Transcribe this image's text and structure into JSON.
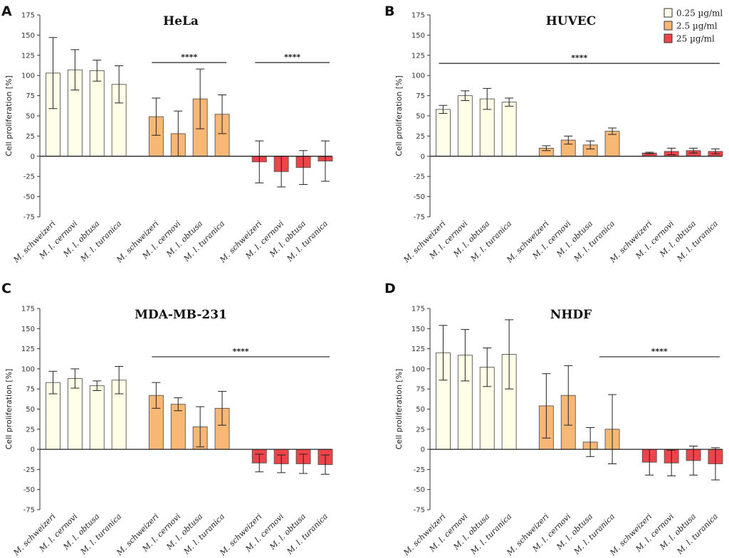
{
  "colors": {
    "low": "#FFFEE6",
    "mid": "#F9B775",
    "high": "#EE4349",
    "stroke": "#333333"
  },
  "legend": [
    {
      "label": "0.25 µg/ml",
      "color_key": "low"
    },
    {
      "label": "2.5 µg/ml",
      "color_key": "mid"
    },
    {
      "label": "25 µg/ml",
      "color_key": "high"
    }
  ],
  "chart_data": [
    {
      "type": "bar",
      "panel": "A",
      "title": "HeLa",
      "ylabel": "Cell proliferation [%]",
      "ylim": [
        -75,
        175
      ],
      "yticks": [
        -75,
        -50,
        -25,
        0,
        25,
        50,
        75,
        100,
        125,
        150,
        175
      ],
      "categories": [
        "M. schweizeri",
        "M. l. cernovi",
        "M. l. obtusa",
        "M. l. turanica"
      ],
      "series": [
        {
          "name": "0.25 µg/ml",
          "color_key": "low",
          "values": [
            103,
            107,
            106,
            89
          ],
          "errors": [
            44,
            25,
            13,
            23
          ]
        },
        {
          "name": "2.5 µg/ml",
          "color_key": "mid",
          "values": [
            49,
            28,
            71,
            52
          ],
          "errors": [
            23,
            28,
            37,
            24
          ]
        },
        {
          "name": "25 µg/ml",
          "color_key": "high",
          "values": [
            -7,
            -19,
            -14,
            -6
          ],
          "errors": [
            26,
            19,
            21,
            25
          ]
        }
      ],
      "significance": [
        {
          "from_group": 1,
          "to_group": 1,
          "value": 116,
          "label": "****"
        },
        {
          "from_group": 2,
          "to_group": 2,
          "value": 116,
          "label": "****"
        }
      ]
    },
    {
      "type": "bar",
      "panel": "B",
      "title": "HUVEC",
      "ylabel": "Cell proliferation [%]",
      "ylim": [
        -75,
        175
      ],
      "yticks": [
        -75,
        -50,
        -25,
        0,
        25,
        50,
        75,
        100,
        125,
        150,
        175
      ],
      "categories": [
        "M. schweizeri",
        "M. l. cernovi",
        "M. l. obtusa",
        "M. l. turanica"
      ],
      "series": [
        {
          "name": "0.25 µg/ml",
          "color_key": "low",
          "values": [
            58,
            75,
            71,
            67
          ],
          "errors": [
            5,
            6,
            13,
            5
          ]
        },
        {
          "name": "2.5 µg/ml",
          "color_key": "mid",
          "values": [
            10,
            20,
            14,
            31
          ],
          "errors": [
            3,
            5,
            5,
            4
          ]
        },
        {
          "name": "25 µg/ml",
          "color_key": "high",
          "values": [
            4,
            6,
            7,
            6
          ],
          "errors": [
            1,
            4,
            3,
            3
          ]
        }
      ],
      "significance": [
        {
          "from_group": 0,
          "to_group": 2,
          "value": 115,
          "label": "****"
        }
      ]
    },
    {
      "type": "bar",
      "panel": "C",
      "title": "MDA-MB-231",
      "ylabel": "Cell proliferation [%]",
      "ylim": [
        -75,
        175
      ],
      "yticks": [
        -75,
        -50,
        -25,
        0,
        25,
        50,
        75,
        100,
        125,
        150,
        175
      ],
      "categories": [
        "M. schweizeri",
        "M. l. cernovi",
        "M. l. obtusa",
        "M. l. turanica"
      ],
      "series": [
        {
          "name": "0.25 µg/ml",
          "color_key": "low",
          "values": [
            83,
            88,
            79,
            86
          ],
          "errors": [
            14,
            12,
            6,
            17
          ]
        },
        {
          "name": "2.5 µg/ml",
          "color_key": "mid",
          "values": [
            67,
            56,
            28,
            51
          ],
          "errors": [
            16,
            8,
            25,
            21
          ]
        },
        {
          "name": "25 µg/ml",
          "color_key": "high",
          "values": [
            -17,
            -18,
            -18,
            -19
          ],
          "errors": [
            11,
            11,
            12,
            12
          ]
        }
      ],
      "significance": [
        {
          "from_group": 1,
          "to_group": 2,
          "value": 115,
          "label": "****"
        }
      ]
    },
    {
      "type": "bar",
      "panel": "D",
      "title": "NHDF",
      "ylabel": "Cell proliferation [%]",
      "ylim": [
        -75,
        175
      ],
      "yticks": [
        -75,
        -50,
        -25,
        0,
        25,
        50,
        75,
        100,
        125,
        150,
        175
      ],
      "categories": [
        "M. schweizeri",
        "M. l. cernovi",
        "M. l. obtusa",
        "M. l. turanica"
      ],
      "series": [
        {
          "name": "0.25 µg/ml",
          "color_key": "low",
          "values": [
            120,
            117,
            102,
            118
          ],
          "errors": [
            34,
            32,
            24,
            43
          ]
        },
        {
          "name": "2.5 µg/ml",
          "color_key": "mid",
          "values": [
            54,
            67,
            9,
            25
          ],
          "errors": [
            40,
            37,
            18,
            43
          ]
        },
        {
          "name": "25 µg/ml",
          "color_key": "high",
          "values": [
            -16,
            -17,
            -14,
            -18
          ],
          "errors": [
            16,
            16,
            18,
            20
          ]
        }
      ],
      "significance": [
        {
          "from_group": 1.65,
          "to_group": 2,
          "value": 115,
          "label": "****"
        }
      ]
    }
  ]
}
